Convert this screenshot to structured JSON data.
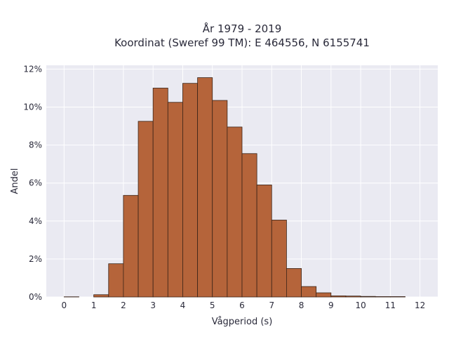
{
  "chart_data": {
    "type": "bar",
    "title_line1": "År 1979 - 2019",
    "title_line2": "Koordinat (Sweref 99 TM): E 464556, N 6155741",
    "xlabel": "Vågperiod (s)",
    "ylabel": "Andel",
    "bin_width": 0.5,
    "bin_starts": [
      0,
      0.5,
      1,
      1.5,
      2,
      2.5,
      3,
      3.5,
      4,
      4.5,
      5,
      5.5,
      6,
      6.5,
      7,
      7.5,
      8,
      8.5,
      9,
      9.5,
      10,
      10.5,
      11,
      11.5
    ],
    "values": [
      0.01,
      0.0,
      0.12,
      1.75,
      5.35,
      9.25,
      11.0,
      10.25,
      11.25,
      11.55,
      10.35,
      8.95,
      7.55,
      5.9,
      4.05,
      1.5,
      0.55,
      0.22,
      0.06,
      0.05,
      0.03,
      0.02,
      0.02,
      0.0
    ],
    "xlim": [
      -0.6,
      12.6
    ],
    "ylim": [
      0,
      12.2
    ],
    "x_ticks": [
      0,
      1,
      2,
      3,
      4,
      5,
      6,
      7,
      8,
      9,
      10,
      11,
      12
    ],
    "x_tick_labels": [
      "0",
      "1",
      "2",
      "3",
      "4",
      "5",
      "6",
      "7",
      "8",
      "9",
      "10",
      "11",
      "12"
    ],
    "y_ticks": [
      0,
      2,
      4,
      6,
      8,
      10,
      12
    ],
    "y_tick_labels": [
      "0%",
      "2%",
      "4%",
      "6%",
      "8%",
      "10%",
      "12%"
    ],
    "grid": true,
    "colors": {
      "bar_fill": "#b5643a",
      "bar_stroke": "#3a2418",
      "plot_background": "#eaeaf2",
      "grid": "#ffffff"
    }
  }
}
